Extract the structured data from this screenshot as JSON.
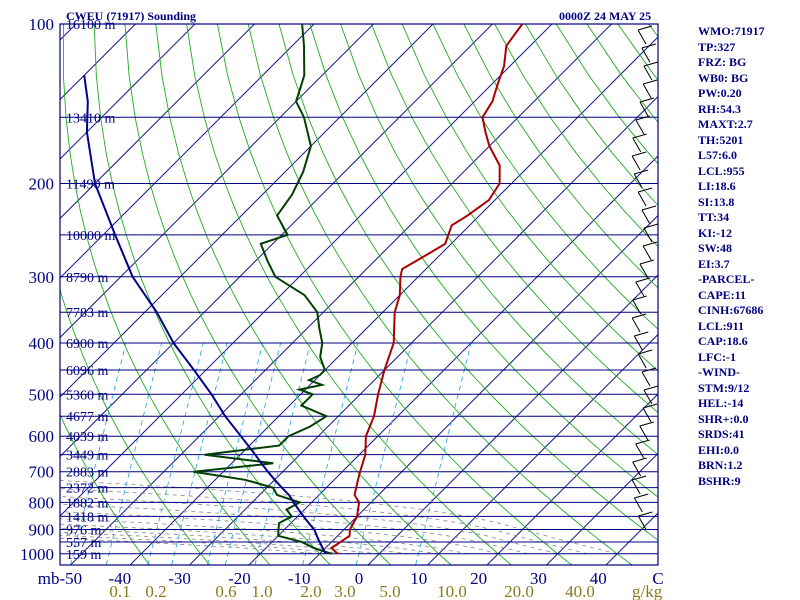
{
  "header": {
    "title": "CWEU (71917) Sounding",
    "time": "0000Z 24 MAY 25"
  },
  "indices": [
    "WMO:71917",
    "TP:327",
    "FRZ: BG",
    "WB0: BG",
    "PW:0.20",
    "RH:54.3",
    "MAXT:2.7",
    "TH:5201",
    "L57:6.0",
    "LCL:955",
    "LI:18.6",
    "SI:13.8",
    "TT:34",
    "KI:-12",
    "SW:48",
    "EI:3.7",
    "-PARCEL-",
    "CAPE:11",
    "CINH:67686",
    "LCL:911",
    "CAP:18.6",
    "LFC:-1",
    "-WIND-",
    "STM:9/12",
    "HEL:-14",
    "SHR+:0.0",
    "SRDS:41",
    "EHI:0.0",
    "BRN:1.2",
    "BSHR:9"
  ],
  "chart_data": {
    "type": "line",
    "title": "CWEU (71917) Sounding",
    "xlabel": "",
    "ylabel": "mb",
    "pressure_levels": [
      100,
      200,
      300,
      400,
      500,
      600,
      700,
      800,
      900,
      1000
    ],
    "height_labels": [
      {
        "p": 100,
        "label": "16100 m"
      },
      {
        "p": 150,
        "label": "13410 m"
      },
      {
        "p": 200,
        "label": "11490 m"
      },
      {
        "p": 250,
        "label": "10000 m"
      },
      {
        "p": 300,
        "label": "8790 m"
      },
      {
        "p": 350,
        "label": "7783 m"
      },
      {
        "p": 400,
        "label": "6900 m"
      },
      {
        "p": 450,
        "label": "6096 m"
      },
      {
        "p": 500,
        "label": "5360 m"
      },
      {
        "p": 550,
        "label": "4677 m"
      },
      {
        "p": 600,
        "label": "4039 m"
      },
      {
        "p": 650,
        "label": "3449 m"
      },
      {
        "p": 700,
        "label": "2883 m"
      },
      {
        "p": 750,
        "label": "2372 m"
      },
      {
        "p": 800,
        "label": "1882 m"
      },
      {
        "p": 850,
        "label": "1418 m"
      },
      {
        "p": 900,
        "label": "976 m"
      },
      {
        "p": 950,
        "label": "557 m"
      },
      {
        "p": 1000,
        "label": "159 m"
      }
    ],
    "temperature_ticks": [
      -50,
      -40,
      -30,
      -20,
      -10,
      0,
      10,
      20,
      30,
      40
    ],
    "temperature_tick_labels": [
      "mb-50",
      "-40",
      "-30",
      "-20",
      "-10",
      "0",
      "10",
      "20",
      "30",
      "40"
    ],
    "mixing_ratio_labels": [
      "0.1",
      "0.2",
      "0.6",
      "1.0",
      "2.0",
      "3.0",
      "5.0",
      "10.0",
      "20.0",
      "40.0"
    ],
    "units_label": "g/kg",
    "corner_label": "C",
    "xlim": [
      -50,
      50
    ],
    "ylim": [
      1050,
      100
    ],
    "series": [
      {
        "color": "#aa0000",
        "points": [
          [
            1000,
            -7
          ],
          [
            975,
            -9
          ],
          [
            950,
            -8.5
          ],
          [
            925,
            -8
          ],
          [
            900,
            -9
          ],
          [
            875,
            -9.5
          ],
          [
            850,
            -10
          ],
          [
            825,
            -11
          ],
          [
            800,
            -12
          ],
          [
            775,
            -14
          ],
          [
            750,
            -15
          ],
          [
            725,
            -16
          ],
          [
            700,
            -17
          ],
          [
            650,
            -19
          ],
          [
            600,
            -22
          ],
          [
            550,
            -24
          ],
          [
            500,
            -27
          ],
          [
            450,
            -30
          ],
          [
            400,
            -33
          ],
          [
            350,
            -38
          ],
          [
            325,
            -40
          ],
          [
            300,
            -43
          ],
          [
            290,
            -44
          ],
          [
            280,
            -43
          ],
          [
            270,
            -42
          ],
          [
            260,
            -41
          ],
          [
            250,
            -42
          ],
          [
            240,
            -43
          ],
          [
            230,
            -42
          ],
          [
            215,
            -41
          ],
          [
            200,
            -42
          ],
          [
            185,
            -45
          ],
          [
            170,
            -50
          ],
          [
            160,
            -53
          ],
          [
            150,
            -56
          ],
          [
            140,
            -57
          ],
          [
            130,
            -59
          ],
          [
            120,
            -61
          ],
          [
            110,
            -64
          ],
          [
            100,
            -65
          ]
        ]
      },
      {
        "color": "#004000",
        "points": [
          [
            1000,
            -8
          ],
          [
            975,
            -12
          ],
          [
            950,
            -15
          ],
          [
            925,
            -20
          ],
          [
            900,
            -21
          ],
          [
            875,
            -22
          ],
          [
            850,
            -21
          ],
          [
            825,
            -23
          ],
          [
            800,
            -22
          ],
          [
            775,
            -27
          ],
          [
            750,
            -29
          ],
          [
            725,
            -35
          ],
          [
            700,
            -45
          ],
          [
            675,
            -33
          ],
          [
            650,
            -46
          ],
          [
            625,
            -35
          ],
          [
            600,
            -35
          ],
          [
            575,
            -33
          ],
          [
            550,
            -32
          ],
          [
            525,
            -38
          ],
          [
            500,
            -38
          ],
          [
            490,
            -41
          ],
          [
            480,
            -38
          ],
          [
            470,
            -41
          ],
          [
            460,
            -40
          ],
          [
            450,
            -40
          ],
          [
            425,
            -43
          ],
          [
            400,
            -45
          ],
          [
            375,
            -48
          ],
          [
            350,
            -51
          ],
          [
            325,
            -56
          ],
          [
            300,
            -64
          ],
          [
            280,
            -68
          ],
          [
            260,
            -72
          ],
          [
            250,
            -69
          ],
          [
            230,
            -74
          ],
          [
            210,
            -75
          ],
          [
            190,
            -77
          ],
          [
            170,
            -80
          ],
          [
            150,
            -86
          ],
          [
            140,
            -90
          ],
          [
            125,
            -93
          ],
          [
            110,
            -98
          ],
          [
            100,
            -102
          ]
        ]
      },
      {
        "color": "#00008b",
        "points": [
          [
            1000,
            -9
          ],
          [
            975,
            -10.5
          ],
          [
            950,
            -12
          ],
          [
            925,
            -13.5
          ],
          [
            900,
            -15
          ],
          [
            875,
            -17
          ],
          [
            850,
            -19
          ],
          [
            825,
            -21
          ],
          [
            800,
            -23
          ],
          [
            775,
            -25
          ],
          [
            750,
            -27.5
          ],
          [
            725,
            -30
          ],
          [
            700,
            -32.5
          ],
          [
            675,
            -35
          ],
          [
            650,
            -37.5
          ],
          [
            600,
            -43
          ],
          [
            550,
            -49
          ],
          [
            500,
            -55
          ],
          [
            450,
            -62
          ],
          [
            400,
            -70
          ],
          [
            350,
            -78
          ],
          [
            300,
            -88
          ],
          [
            250,
            -98
          ],
          [
            200,
            -110
          ],
          [
            160,
            -120
          ],
          [
            140,
            -125
          ],
          [
            125,
            -130
          ]
        ]
      }
    ],
    "grid": true
  }
}
